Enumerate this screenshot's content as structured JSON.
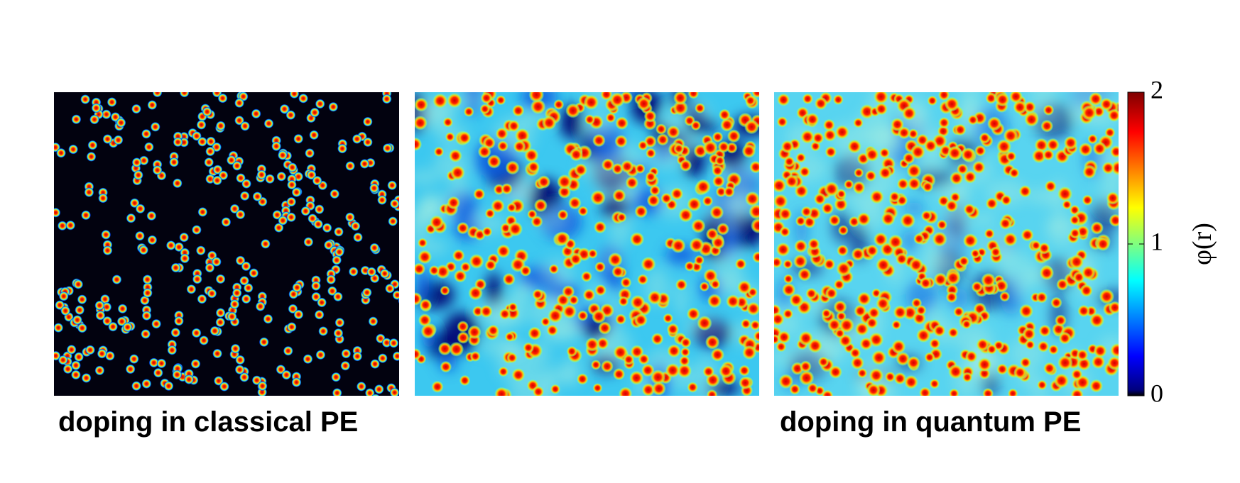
{
  "chart_data": {
    "type": "heatmap",
    "panel_labels": [
      "doping in classical PE",
      null,
      "doping in quantum PE"
    ],
    "colorbar": {
      "label": "φ(r)",
      "lim": [
        0,
        2
      ],
      "ticks": [
        0,
        1,
        2
      ],
      "colormap": "jet"
    }
  }
}
